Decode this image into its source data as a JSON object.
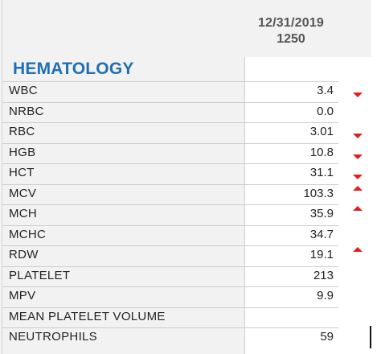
{
  "header": {
    "date": "12/31/2019",
    "time": "1250"
  },
  "section": {
    "title": "HEMATOLOGY"
  },
  "rows": [
    {
      "label": "WBC",
      "value": "3.4",
      "flag": "low"
    },
    {
      "label": "NRBC",
      "value": "0.0",
      "flag": ""
    },
    {
      "label": "RBC",
      "value": "3.01",
      "flag": "low"
    },
    {
      "label": "HGB",
      "value": "10.8",
      "flag": "low"
    },
    {
      "label": "HCT",
      "value": "31.1",
      "flag": "low"
    },
    {
      "label": "MCV",
      "value": "103.3",
      "flag": "high"
    },
    {
      "label": "MCH",
      "value": "35.9",
      "flag": "high"
    },
    {
      "label": "MCHC",
      "value": "34.7",
      "flag": ""
    },
    {
      "label": "RDW",
      "value": "19.1",
      "flag": "high"
    },
    {
      "label": "PLATELET",
      "value": "213",
      "flag": ""
    },
    {
      "label": "MPV",
      "value": "9.9",
      "flag": ""
    },
    {
      "label": "MEAN PLATELET VOLUME",
      "value": "",
      "flag": ""
    },
    {
      "label": "NEUTROPHILS",
      "value": "59",
      "flag": ""
    }
  ],
  "colors": {
    "flag": "#e02020",
    "section_title": "#1f6fb2"
  },
  "icons": {
    "low": "arrow-down-icon",
    "high": "arrow-up-icon"
  }
}
